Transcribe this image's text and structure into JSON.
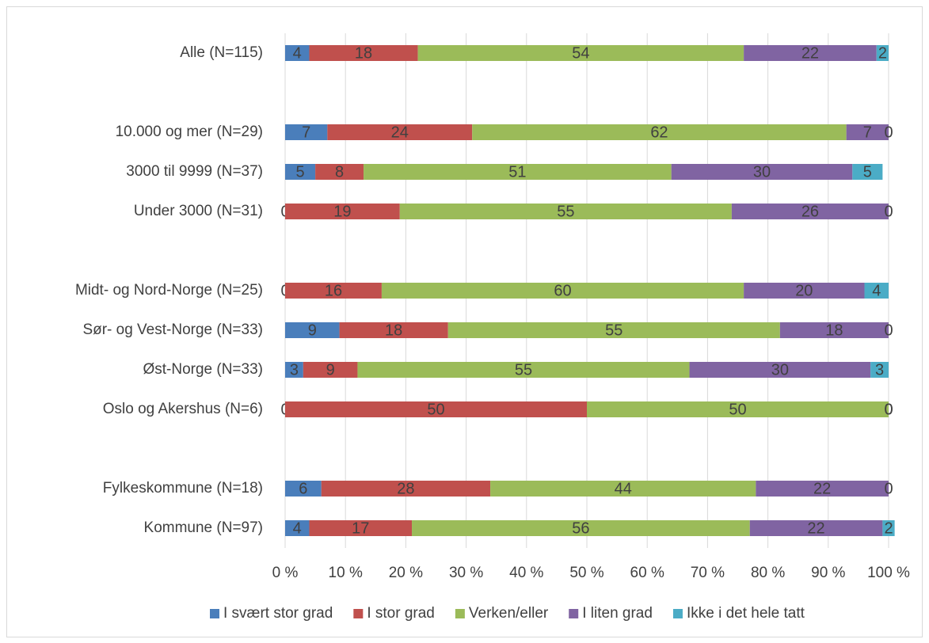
{
  "chart_data": {
    "type": "stacked-bar-horizontal",
    "categories": [
      "Alle (N=115)",
      null,
      "10.000 og mer (N=29)",
      "3000 til 9999 (N=37)",
      "Under 3000 (N=31)",
      null,
      "Midt- og Nord-Norge (N=25)",
      "Sør- og Vest-Norge (N=33)",
      "Øst-Norge (N=33)",
      "Oslo og Akershus (N=6)",
      null,
      "Fylkeskommune (N=18)",
      "Kommune (N=97)"
    ],
    "series": [
      {
        "name": "I svært stor grad",
        "color": "#4a7ebb",
        "values": [
          4,
          null,
          7,
          5,
          0,
          null,
          0,
          9,
          3,
          0,
          null,
          6,
          4
        ]
      },
      {
        "name": "I stor grad",
        "color": "#c0504d",
        "values": [
          18,
          null,
          24,
          8,
          19,
          null,
          16,
          18,
          9,
          50,
          null,
          28,
          17
        ]
      },
      {
        "name": "Verken/eller",
        "color": "#9bbb59",
        "values": [
          54,
          null,
          62,
          51,
          55,
          null,
          60,
          55,
          55,
          50,
          null,
          44,
          56
        ]
      },
      {
        "name": "I liten grad",
        "color": "#8064a2",
        "values": [
          22,
          null,
          7,
          30,
          26,
          null,
          20,
          18,
          30,
          0,
          null,
          22,
          22
        ]
      },
      {
        "name": "Ikke i det hele tatt",
        "color": "#4bacc6",
        "values": [
          2,
          null,
          0,
          5,
          0,
          null,
          4,
          0,
          3,
          0,
          null,
          0,
          2
        ]
      }
    ],
    "xlim": [
      0,
      100
    ],
    "xticks": [
      {
        "value": 0,
        "label": "0 %"
      },
      {
        "value": 10,
        "label": "10 %"
      },
      {
        "value": 20,
        "label": "20 %"
      },
      {
        "value": 30,
        "label": "30 %"
      },
      {
        "value": 40,
        "label": "40 %"
      },
      {
        "value": 50,
        "label": "50 %"
      },
      {
        "value": 60,
        "label": "60 %"
      },
      {
        "value": 70,
        "label": "70 %"
      },
      {
        "value": 80,
        "label": "80 %"
      },
      {
        "value": 90,
        "label": "90 %"
      },
      {
        "value": 100,
        "label": "100 %"
      }
    ],
    "grid": true,
    "legend": "bottom"
  }
}
